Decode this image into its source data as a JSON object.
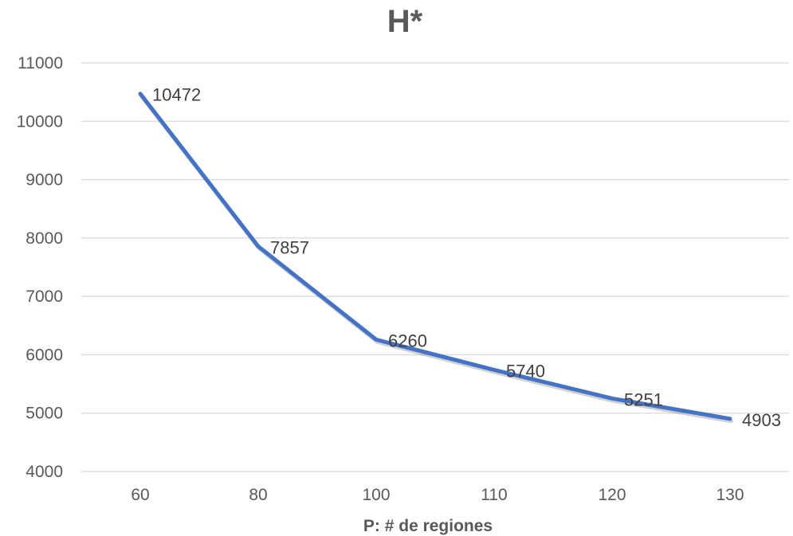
{
  "chart_data": {
    "type": "line",
    "title": "H*",
    "xlabel": "P: # de regiones",
    "ylabel": "",
    "categories": [
      "60",
      "80",
      "100",
      "110",
      "120",
      "130"
    ],
    "series": [
      {
        "values": [
          10472,
          7857,
          6260,
          5740,
          5251,
          4903
        ],
        "color": "#4472c4"
      }
    ],
    "ylim": [
      4000,
      11000
    ],
    "yticks": [
      "4000",
      "5000",
      "6000",
      "7000",
      "8000",
      "9000",
      "10000",
      "11000"
    ],
    "data_labels": [
      "10472",
      "7857",
      "6260",
      "5740",
      "5251",
      "4903"
    ],
    "grid": true,
    "legend": "none"
  }
}
